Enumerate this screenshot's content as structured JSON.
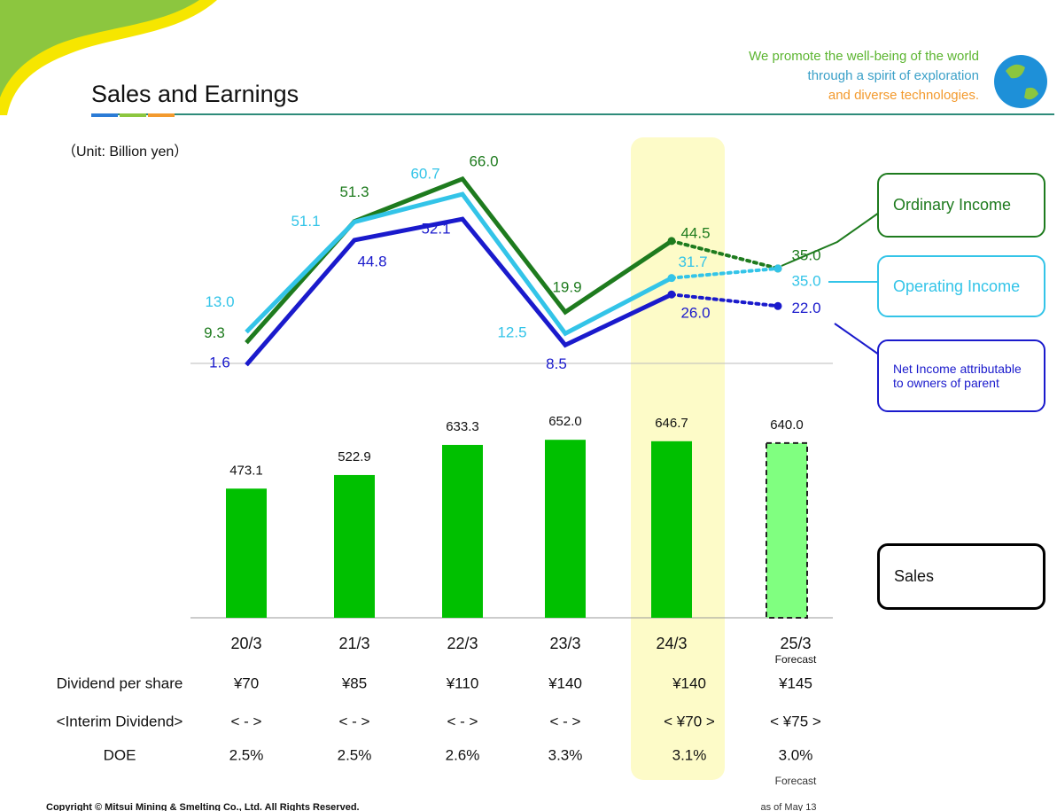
{
  "header": {
    "title": "Sales and Earnings",
    "unit": "（Unit: Billion yen）",
    "slogan": [
      "We promote the well-being of the world",
      "through a spirit of exploration",
      "and diverse technologies."
    ]
  },
  "chart_data": [
    {
      "type": "line",
      "series": [
        {
          "name": "Ordinary Income",
          "color": "#1e7b1e",
          "values": [
            9.3,
            51.3,
            66.0,
            19.9,
            44.5,
            35.0
          ],
          "value_labels": [
            "9.3",
            "51.3",
            "66.0",
            "19.9",
            "44.5",
            "35.0"
          ]
        },
        {
          "name": "Operating Income",
          "color": "#33c4e8",
          "values": [
            13.0,
            51.1,
            60.7,
            12.5,
            31.7,
            35.0
          ],
          "value_labels": [
            "13.0",
            "51.1",
            "60.7",
            "12.5",
            "31.7",
            "35.0"
          ]
        },
        {
          "name": "Net Income attributable to owners of parent",
          "color": "#1a1acc",
          "values": [
            1.6,
            44.8,
            52.1,
            8.5,
            26.0,
            22.0
          ],
          "value_labels": [
            "1.6",
            "44.8",
            "52.1",
            "8.5",
            "26.0",
            "22.0"
          ]
        }
      ]
    },
    {
      "type": "bar",
      "name": "Sales",
      "color": "#00c000",
      "forecast_color": "#80ff80",
      "categories": [
        "20/3",
        "21/3",
        "22/3",
        "23/3",
        "24/3",
        "25/3"
      ],
      "forecast_label": "Forecast",
      "values": [
        473.1,
        522.9,
        633.3,
        652.0,
        646.7,
        640.0
      ],
      "value_labels": [
        "473.1",
        "522.9",
        "633.3",
        "652.0",
        "646.7",
        "640.0"
      ]
    }
  ],
  "table": {
    "rows": [
      [
        "Dividend per share",
        "¥70",
        "¥85",
        "¥110",
        "¥140",
        "¥140",
        "¥145"
      ],
      [
        "<Interim Dividend>",
        "< - >",
        "< - >",
        "< - >",
        "< - >",
        "< ¥70 >",
        "< ¥75 >"
      ],
      [
        "DOE",
        "2.5%",
        "2.5%",
        "2.6%",
        "3.3%",
        "3.1%",
        "3.0%"
      ]
    ],
    "note": "Forecast"
  },
  "footer": {
    "copyright": "Copyright © Mitsui Mining & Smelting Co., Ltd. All Rights Reserved.",
    "date": "as of May 13"
  }
}
